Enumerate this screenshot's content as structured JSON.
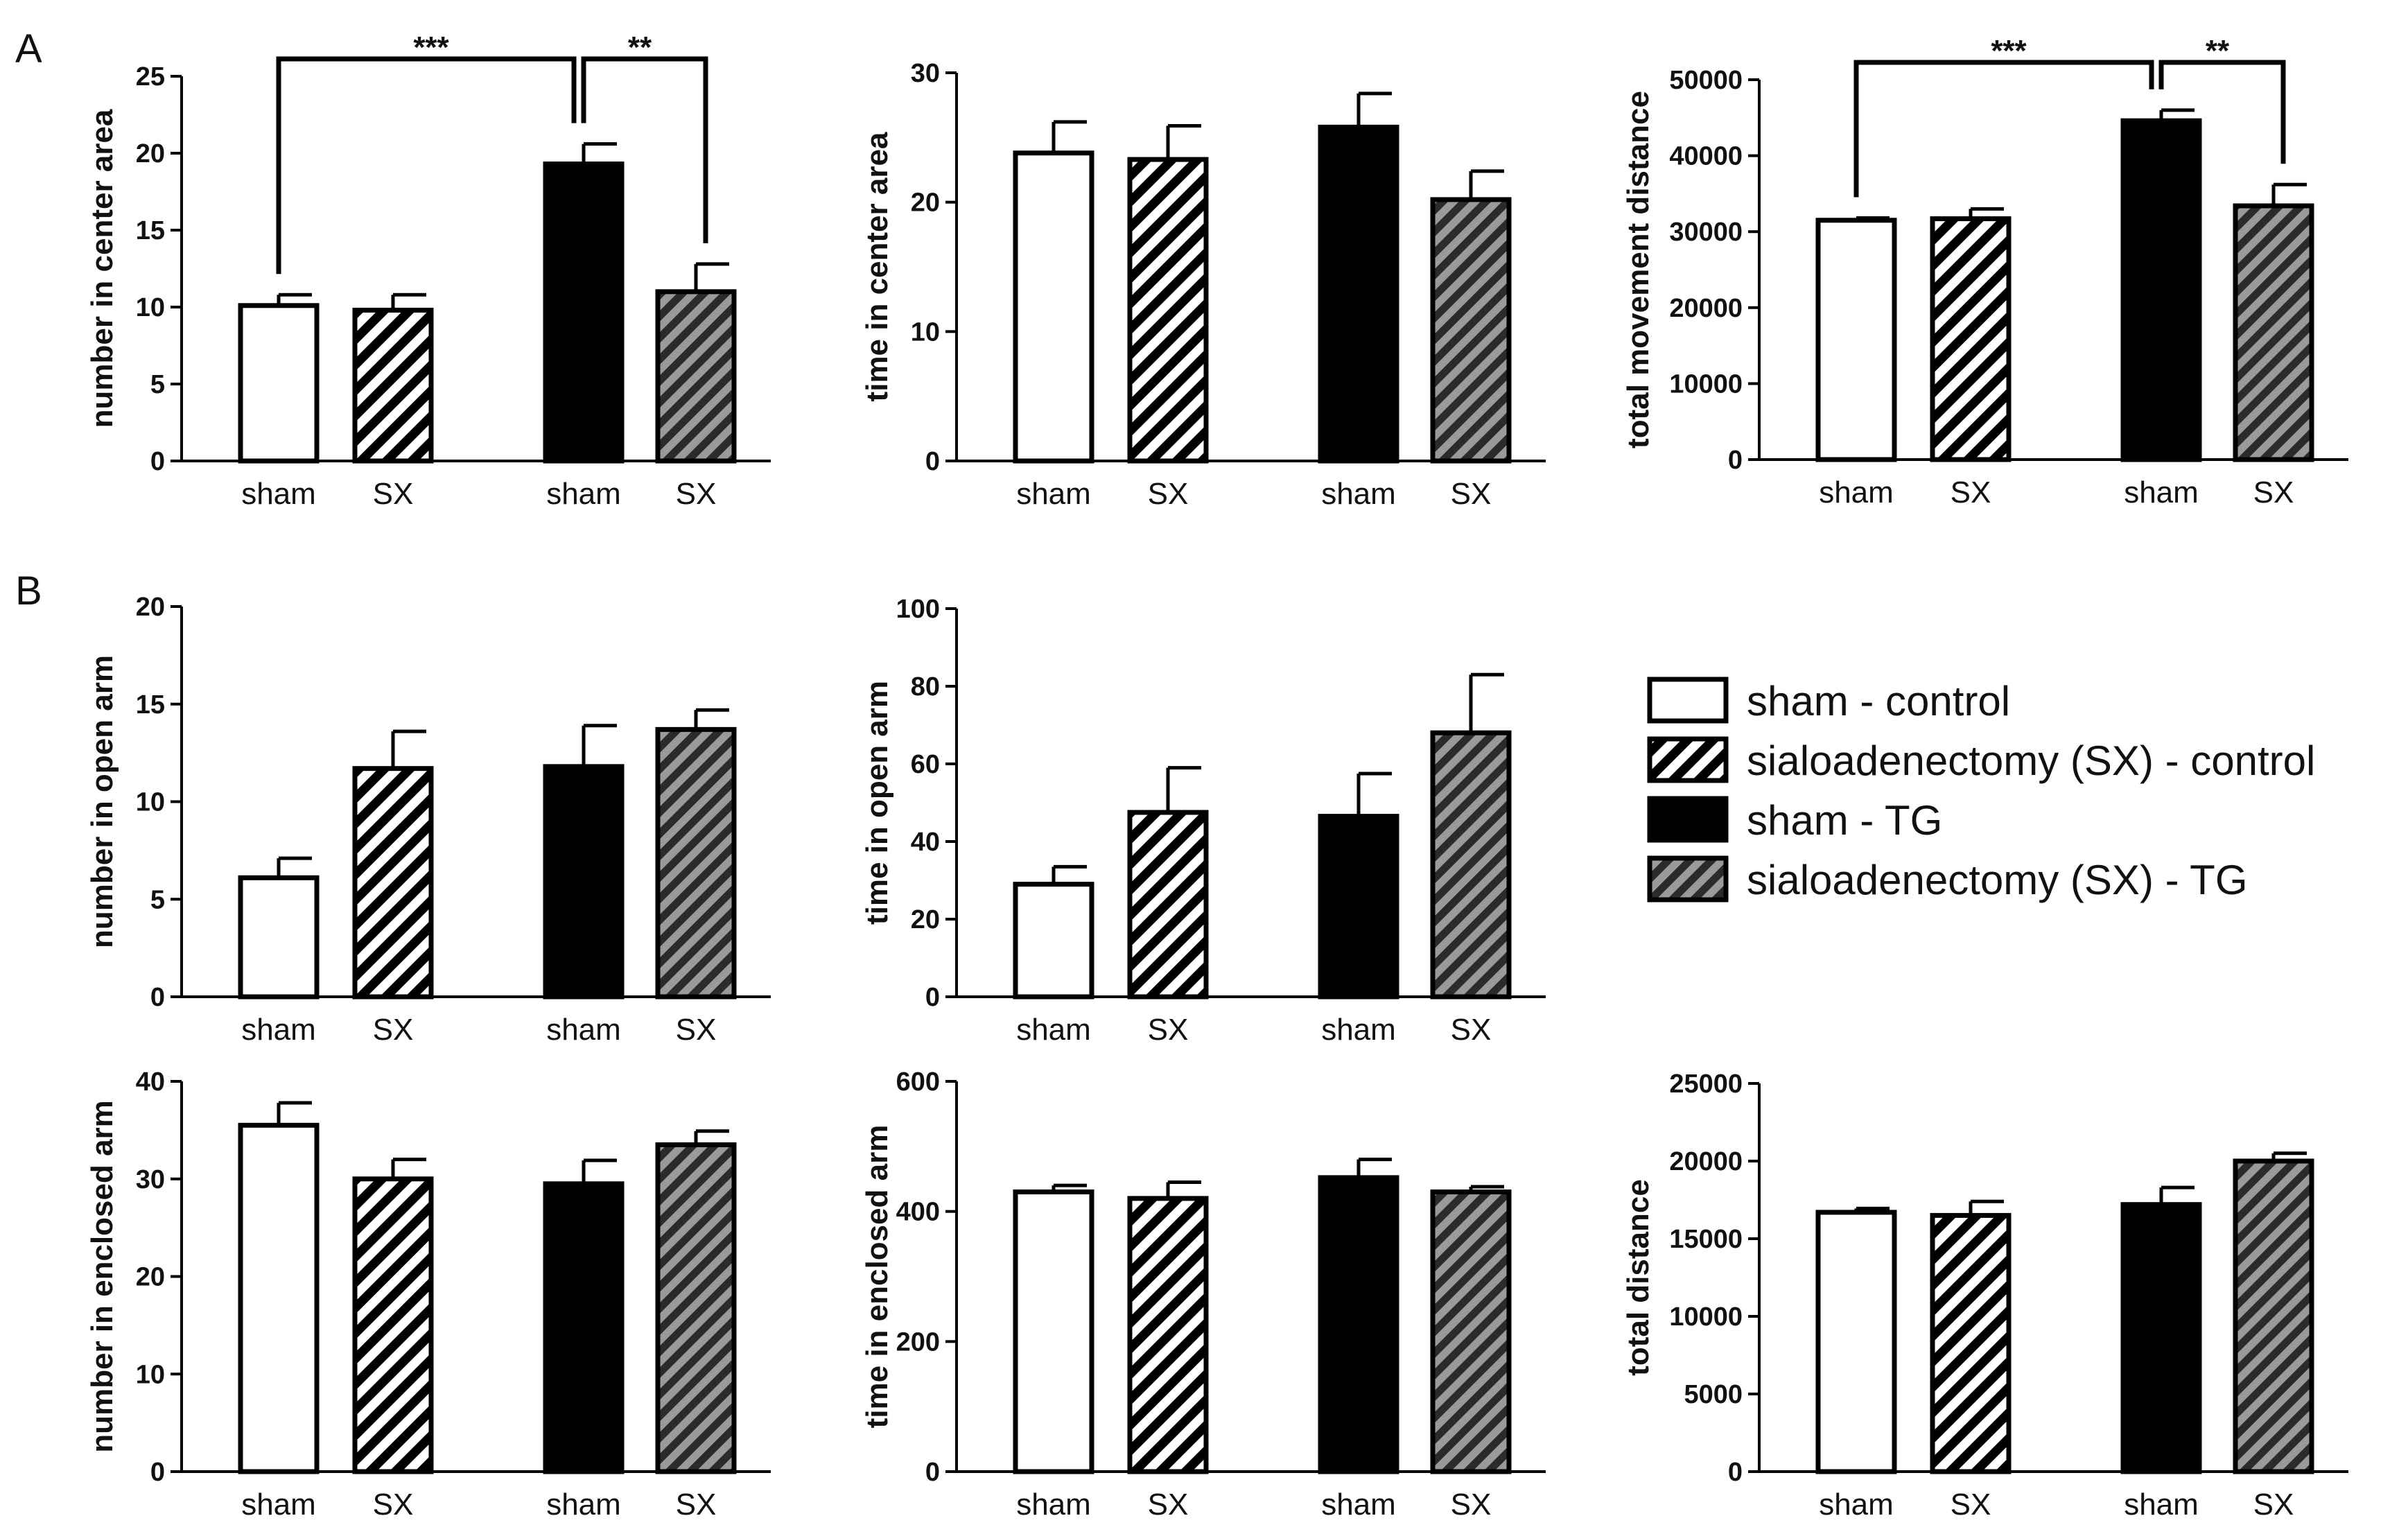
{
  "figure": {
    "panel_labels": [
      "A",
      "B"
    ]
  },
  "legend": {
    "items": [
      {
        "label": "sham - control",
        "pattern": "open"
      },
      {
        "label": "sialoadenectomy (SX) - control",
        "pattern": "hatch-white"
      },
      {
        "label": "sham - TG",
        "pattern": "solid"
      },
      {
        "label": "sialoadenectomy (SX) - TG",
        "pattern": "hatch-gray"
      }
    ]
  },
  "chart_data": [
    {
      "type": "bar",
      "panel": "A",
      "ylabel": "number in center area",
      "categories": [
        "sham",
        "SX",
        "sham",
        "SX"
      ],
      "groups": [
        "sham - control",
        "sialoadenectomy (SX) - control",
        "sham - TG",
        "sialoadenectomy (SX) - TG"
      ],
      "values": [
        10.1,
        9.8,
        19.3,
        11.0
      ],
      "errors": [
        0.7,
        1.0,
        1.3,
        1.8
      ],
      "ylim": [
        0,
        25
      ],
      "yticks": [
        0,
        5,
        10,
        15,
        20,
        25
      ],
      "significance": [
        {
          "from": 0,
          "to": 2,
          "label": "***"
        },
        {
          "from": 2,
          "to": 3,
          "label": "**"
        }
      ]
    },
    {
      "type": "bar",
      "panel": "A",
      "ylabel": "time in center area",
      "categories": [
        "sham",
        "SX",
        "sham",
        "SX"
      ],
      "groups": [
        "sham - control",
        "sialoadenectomy (SX) - control",
        "sham - TG",
        "sialoadenectomy (SX) - TG"
      ],
      "values": [
        23.8,
        23.3,
        25.8,
        20.2
      ],
      "errors": [
        2.4,
        2.6,
        2.6,
        2.2
      ],
      "ylim": [
        0,
        30
      ],
      "yticks": [
        0,
        10,
        20,
        30
      ],
      "significance": []
    },
    {
      "type": "bar",
      "panel": "A",
      "ylabel": "total movement distance",
      "categories": [
        "sham",
        "SX",
        "sham",
        "SX"
      ],
      "groups": [
        "sham - control",
        "sialoadenectomy (SX) - control",
        "sham - TG",
        "sialoadenectomy (SX) - TG"
      ],
      "values": [
        31500,
        31700,
        44600,
        33400
      ],
      "errors": [
        300,
        1300,
        1400,
        2800
      ],
      "ylim": [
        0,
        50000
      ],
      "yticks": [
        0,
        10000,
        20000,
        30000,
        40000,
        50000
      ],
      "significance": [
        {
          "from": 0,
          "to": 2,
          "label": "***"
        },
        {
          "from": 2,
          "to": 3,
          "label": "**"
        }
      ]
    },
    {
      "type": "bar",
      "panel": "B",
      "ylabel": "number in open arm",
      "categories": [
        "sham",
        "SX",
        "sham",
        "SX"
      ],
      "groups": [
        "sham - control",
        "sialoadenectomy (SX) - control",
        "sham - TG",
        "sialoadenectomy (SX) - TG"
      ],
      "values": [
        6.1,
        11.7,
        11.8,
        13.7
      ],
      "errors": [
        1.0,
        1.9,
        2.1,
        1.0
      ],
      "ylim": [
        0,
        20
      ],
      "yticks": [
        0,
        5,
        10,
        15,
        20
      ],
      "significance": []
    },
    {
      "type": "bar",
      "panel": "B",
      "ylabel": "time in open arm",
      "categories": [
        "sham",
        "SX",
        "sham",
        "SX"
      ],
      "groups": [
        "sham - control",
        "sialoadenectomy (SX) - control",
        "sham - TG",
        "sialoadenectomy (SX) - TG"
      ],
      "values": [
        29,
        47.5,
        46.5,
        68
      ],
      "errors": [
        4.5,
        11.5,
        11,
        15
      ],
      "ylim": [
        0,
        100
      ],
      "yticks": [
        0,
        20,
        40,
        60,
        80,
        100
      ],
      "significance": []
    },
    {
      "type": "bar",
      "panel": "B",
      "ylabel": "number in enclosed arm",
      "categories": [
        "sham",
        "SX",
        "sham",
        "SX"
      ],
      "groups": [
        "sham - control",
        "sialoadenectomy (SX) - control",
        "sham - TG",
        "sialoadenectomy (SX) - TG"
      ],
      "values": [
        35.5,
        30.0,
        29.5,
        33.5
      ],
      "errors": [
        2.3,
        2.0,
        2.4,
        1.4
      ],
      "ylim": [
        0,
        40
      ],
      "yticks": [
        0,
        10,
        20,
        30,
        40
      ],
      "significance": []
    },
    {
      "type": "bar",
      "panel": "B",
      "ylabel": "time in enclosed arm",
      "categories": [
        "sham",
        "SX",
        "sham",
        "SX"
      ],
      "groups": [
        "sham - control",
        "sialoadenectomy (SX) - control",
        "sham - TG",
        "sialoadenectomy (SX) - TG"
      ],
      "values": [
        430,
        420,
        452,
        430
      ],
      "errors": [
        10,
        25,
        28,
        8
      ],
      "ylim": [
        0,
        600
      ],
      "yticks": [
        0,
        200,
        400,
        600
      ],
      "significance": []
    },
    {
      "type": "bar",
      "panel": "B",
      "ylabel": "total distance",
      "categories": [
        "sham",
        "SX",
        "sham",
        "SX"
      ],
      "groups": [
        "sham - control",
        "sialoadenectomy (SX) - control",
        "sham - TG",
        "sialoadenectomy (SX) - TG"
      ],
      "values": [
        16700,
        16500,
        17200,
        20000
      ],
      "errors": [
        250,
        900,
        1100,
        500
      ],
      "ylim": [
        0,
        25000
      ],
      "yticks": [
        0,
        5000,
        10000,
        15000,
        20000,
        25000
      ],
      "significance": []
    }
  ]
}
